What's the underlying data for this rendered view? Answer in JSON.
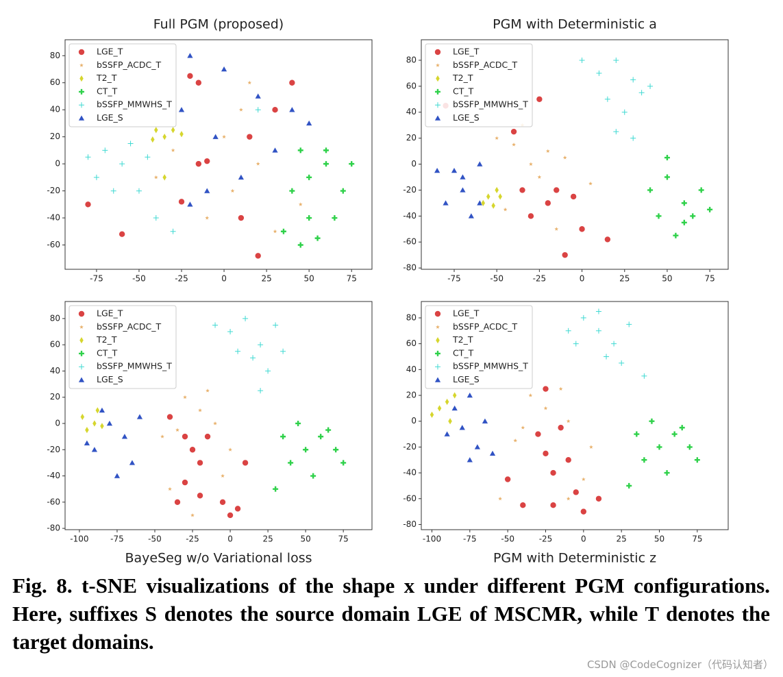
{
  "chart_data": [
    {
      "type": "scatter",
      "title": "Full PGM (proposed)",
      "legend": "upper left",
      "grid": false,
      "xlim": [
        -93.5,
        87
      ],
      "ylim": [
        -78,
        91.8
      ],
      "xticks": [
        -75,
        -50,
        -25,
        0,
        25,
        50,
        75
      ],
      "yticks": [
        -60,
        -40,
        -20,
        0,
        20,
        40,
        60,
        80
      ],
      "series": [
        {
          "name": "LGE_T",
          "color": "#d62f2f",
          "marker": "o",
          "x": [
            -15,
            -20,
            -10,
            -15,
            20,
            -60,
            -80,
            30,
            10,
            -25,
            40,
            15
          ],
          "y": [
            60,
            65,
            2,
            0,
            -68,
            -52,
            -30,
            40,
            -40,
            -28,
            60,
            20
          ]
        },
        {
          "name": "bSSFP_ACDC_T",
          "color": "#e8b26e",
          "marker": "*",
          "x": [
            0,
            10,
            -30,
            20,
            -10,
            30,
            5,
            -40,
            15,
            45
          ],
          "y": [
            20,
            40,
            10,
            0,
            -40,
            -50,
            -20,
            -10,
            60,
            -30
          ]
        },
        {
          "name": "T2_T",
          "color": "#d6d62e",
          "marker": "d",
          "x": [
            -40,
            -35,
            -30,
            -42,
            -25,
            -35
          ],
          "y": [
            25,
            20,
            25,
            18,
            22,
            -10
          ]
        },
        {
          "name": "CT_T",
          "color": "#2fd14a",
          "marker": "P",
          "x": [
            50,
            60,
            45,
            70,
            40,
            55,
            65,
            75,
            50,
            35,
            60,
            45
          ],
          "y": [
            -40,
            0,
            10,
            -20,
            -20,
            -55,
            -40,
            0,
            -10,
            -50,
            10,
            -60
          ]
        },
        {
          "name": "bSSFP_MMWHS_T",
          "color": "#3fd9d2",
          "marker": "+",
          "x": [
            -60,
            -70,
            -50,
            -40,
            -65,
            -80,
            -30,
            -55,
            20,
            -75,
            -45
          ],
          "y": [
            0,
            10,
            -20,
            -40,
            -20,
            5,
            -50,
            15,
            40,
            -10,
            5
          ]
        },
        {
          "name": "LGE_S",
          "color": "#3153c4",
          "marker": "^",
          "x": [
            -20,
            0,
            20,
            40,
            -5,
            -10,
            10,
            30,
            -20,
            50,
            -25
          ],
          "y": [
            80,
            70,
            50,
            40,
            20,
            -20,
            -10,
            10,
            -30,
            30,
            40
          ]
        }
      ]
    },
    {
      "type": "scatter",
      "title": "PGM with Deterministic a",
      "legend": "upper left",
      "grid": false,
      "xlim": [
        -94.3,
        85.8
      ],
      "ylim": [
        -81,
        95.8
      ],
      "xticks": [
        -75,
        -50,
        -25,
        0,
        25,
        50,
        75
      ],
      "yticks": [
        -80,
        -60,
        -40,
        -20,
        0,
        20,
        40,
        60,
        80
      ],
      "series": [
        {
          "name": "LGE_T",
          "color": "#d62f2f",
          "marker": "o",
          "x": [
            -80,
            -40,
            -20,
            -30,
            -15,
            0,
            -10,
            15,
            -25,
            -5,
            -35
          ],
          "y": [
            45,
            25,
            -30,
            -40,
            -20,
            -50,
            -70,
            -58,
            50,
            -25,
            -20
          ]
        },
        {
          "name": "bSSFP_ACDC_T",
          "color": "#e8b26e",
          "marker": "*",
          "x": [
            -40,
            -30,
            -20,
            -50,
            -25,
            -10,
            -45,
            -15,
            -35,
            5
          ],
          "y": [
            15,
            0,
            10,
            20,
            -10,
            5,
            -35,
            -50,
            30,
            -15
          ]
        },
        {
          "name": "T2_T",
          "color": "#d6d62e",
          "marker": "d",
          "x": [
            -55,
            -50,
            -58,
            -52,
            -48
          ],
          "y": [
            -25,
            -20,
            -30,
            -32,
            -25
          ]
        },
        {
          "name": "CT_T",
          "color": "#2fd14a",
          "marker": "P",
          "x": [
            50,
            60,
            70,
            45,
            55,
            65,
            40,
            75,
            50,
            60
          ],
          "y": [
            -10,
            -30,
            -20,
            -40,
            -55,
            -40,
            -20,
            -35,
            5,
            -45
          ]
        },
        {
          "name": "bSSFP_MMWHS_T",
          "color": "#3fd9d2",
          "marker": "+",
          "x": [
            20,
            10,
            30,
            15,
            25,
            35,
            20,
            40,
            0,
            30
          ],
          "y": [
            80,
            70,
            65,
            50,
            40,
            55,
            25,
            60,
            80,
            20
          ]
        },
        {
          "name": "LGE_S",
          "color": "#3153c4",
          "marker": "^",
          "x": [
            -75,
            -70,
            -80,
            -65,
            -60,
            -70,
            -85,
            -60
          ],
          "y": [
            -5,
            -20,
            -30,
            -40,
            0,
            -10,
            -5,
            -30
          ]
        }
      ]
    },
    {
      "type": "scatter",
      "title": "BayeSeg w/o Variational loss",
      "legend": "upper left",
      "grid": false,
      "xlim": [
        -109.5,
        94
      ],
      "ylim": [
        -81,
        93
      ],
      "xticks": [
        -100,
        -75,
        -50,
        -25,
        0,
        25,
        50,
        75
      ],
      "yticks": [
        -80,
        -60,
        -40,
        -20,
        0,
        20,
        40,
        60,
        80
      ],
      "series": [
        {
          "name": "LGE_T",
          "color": "#d62f2f",
          "marker": "o",
          "x": [
            -30,
            -25,
            -20,
            -35,
            -20,
            -5,
            0,
            -30,
            -15,
            5,
            -40,
            10
          ],
          "y": [
            -10,
            -20,
            -30,
            -60,
            -55,
            -60,
            -70,
            -45,
            -10,
            -65,
            5,
            -30
          ]
        },
        {
          "name": "bSSFP_ACDC_T",
          "color": "#e8b26e",
          "marker": "*",
          "x": [
            -20,
            -30,
            -10,
            -35,
            -15,
            0,
            -45,
            -5,
            -25,
            -40
          ],
          "y": [
            10,
            20,
            0,
            -5,
            25,
            -20,
            -10,
            -40,
            -70,
            -50
          ]
        },
        {
          "name": "T2_T",
          "color": "#d6d62e",
          "marker": "d",
          "x": [
            -95,
            -90,
            -98,
            -88,
            -85
          ],
          "y": [
            -5,
            0,
            5,
            10,
            -2
          ]
        },
        {
          "name": "CT_T",
          "color": "#2fd14a",
          "marker": "P",
          "x": [
            50,
            60,
            40,
            70,
            35,
            55,
            45,
            75,
            65,
            30
          ],
          "y": [
            -20,
            -10,
            -30,
            -20,
            -10,
            -40,
            0,
            -30,
            -5,
            -50
          ]
        },
        {
          "name": "bSSFP_MMWHS_T",
          "color": "#3fd9d2",
          "marker": "+",
          "x": [
            10,
            20,
            0,
            30,
            15,
            25,
            5,
            -10,
            35,
            20
          ],
          "y": [
            80,
            60,
            70,
            75,
            50,
            40,
            55,
            75,
            55,
            25
          ]
        },
        {
          "name": "LGE_S",
          "color": "#3153c4",
          "marker": "^",
          "x": [
            -80,
            -90,
            -70,
            -85,
            -65,
            -75,
            -95,
            -60
          ],
          "y": [
            0,
            -20,
            -10,
            10,
            -30,
            -40,
            -15,
            5
          ]
        }
      ]
    },
    {
      "type": "scatter",
      "title": "PGM with Deterministic z",
      "legend": "upper left",
      "grid": false,
      "xlim": [
        -107,
        95.4
      ],
      "ylim": [
        -84,
        92.7
      ],
      "xticks": [
        -100,
        -75,
        -50,
        -25,
        0,
        25,
        50,
        75
      ],
      "yticks": [
        -80,
        -60,
        -40,
        -20,
        0,
        20,
        40,
        60,
        80
      ],
      "series": [
        {
          "name": "LGE_T",
          "color": "#d62f2f",
          "marker": "o",
          "x": [
            -30,
            -25,
            -20,
            -40,
            -20,
            -5,
            0,
            -10,
            -15,
            10,
            -50,
            -25
          ],
          "y": [
            -10,
            -25,
            -40,
            -65,
            -65,
            -55,
            -70,
            -30,
            -5,
            -60,
            -45,
            25
          ]
        },
        {
          "name": "bSSFP_ACDC_T",
          "color": "#e8b26e",
          "marker": "*",
          "x": [
            -25,
            -35,
            -10,
            -40,
            -15,
            5,
            -45,
            0,
            -55,
            -10
          ],
          "y": [
            10,
            20,
            0,
            -5,
            25,
            -20,
            -15,
            -45,
            -60,
            -60
          ]
        },
        {
          "name": "T2_T",
          "color": "#d6d62e",
          "marker": "d",
          "x": [
            -90,
            -95,
            -85,
            -100,
            -88
          ],
          "y": [
            15,
            10,
            20,
            5,
            0
          ]
        },
        {
          "name": "CT_T",
          "color": "#2fd14a",
          "marker": "P",
          "x": [
            50,
            60,
            40,
            70,
            35,
            55,
            45,
            75,
            65,
            30
          ],
          "y": [
            -20,
            -10,
            -30,
            -20,
            -10,
            -40,
            0,
            -30,
            -5,
            -50
          ]
        },
        {
          "name": "bSSFP_MMWHS_T",
          "color": "#3fd9d2",
          "marker": "+",
          "x": [
            0,
            10,
            20,
            30,
            15,
            -5,
            25,
            40,
            10,
            -10
          ],
          "y": [
            80,
            70,
            60,
            75,
            50,
            60,
            45,
            35,
            85,
            70
          ]
        },
        {
          "name": "LGE_S",
          "color": "#3153c4",
          "marker": "^",
          "x": [
            -80,
            -70,
            -85,
            -75,
            -65,
            -90,
            -60,
            -75
          ],
          "y": [
            -5,
            -20,
            10,
            -30,
            0,
            -10,
            -25,
            20
          ]
        }
      ]
    }
  ],
  "caption": "Fig. 8. t-SNE visualizations of the shape x under different PGM configurations. Here, suffixes S denotes the source domain LGE of MSCMR, while T denotes the target domains.",
  "watermark": "CSDN @CodeCognizer（代码认知者）"
}
